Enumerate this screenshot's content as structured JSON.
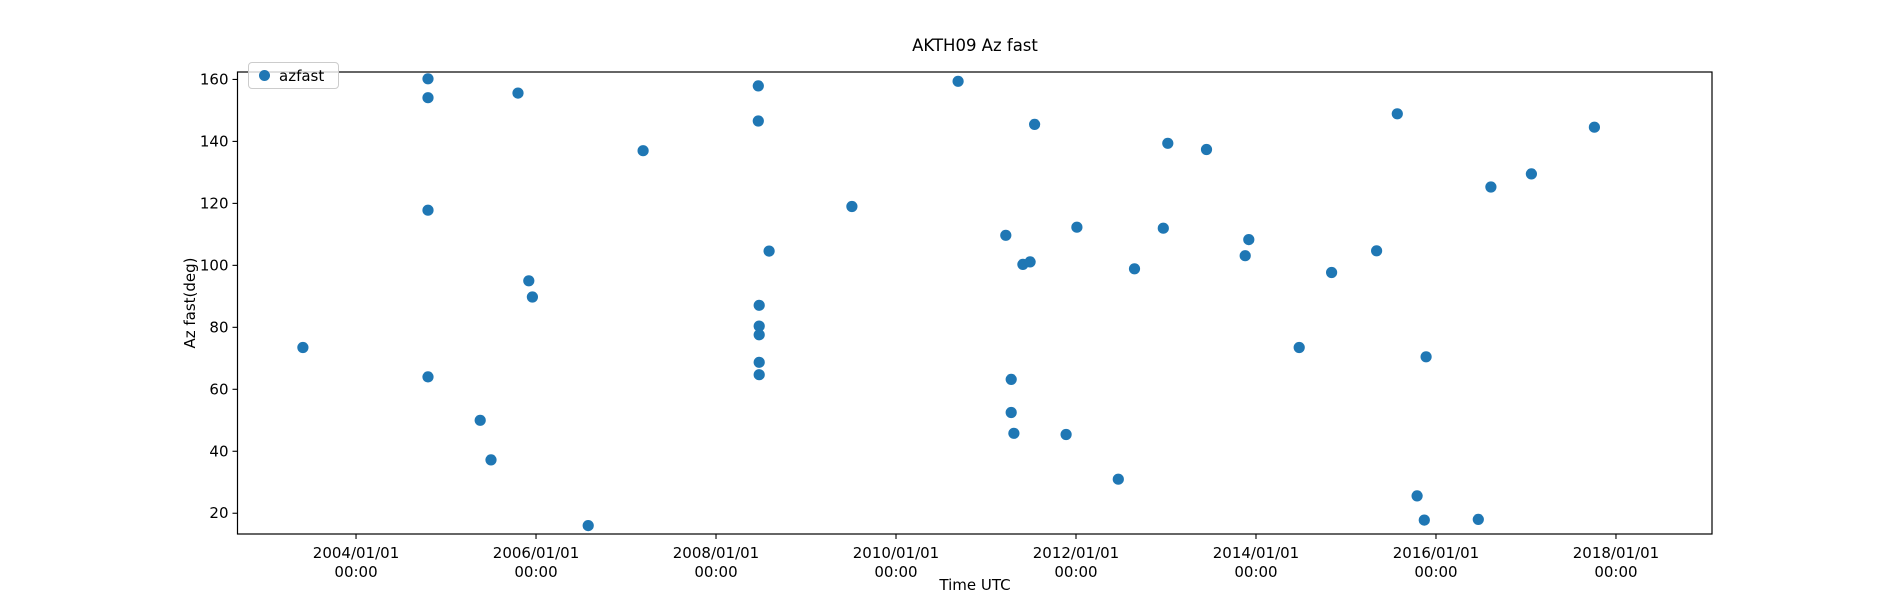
{
  "chart_data": {
    "type": "scatter",
    "title": "AKTH09 Az fast",
    "xlabel": "Time UTC",
    "ylabel": "Az fast(deg)",
    "marker_color": "#1f77b4",
    "axis_color": "#000000",
    "legend_position": "upper left",
    "grid": false,
    "series": [
      {
        "name": "azfast",
        "points": [
          [
            2003.41,
            73.5
          ],
          [
            2004.8,
            160.2
          ],
          [
            2004.8,
            154.1
          ],
          [
            2004.8,
            117.8
          ],
          [
            2004.8,
            64.0
          ],
          [
            2005.38,
            50.0
          ],
          [
            2005.5,
            37.2
          ],
          [
            2005.8,
            155.6
          ],
          [
            2005.92,
            95.0
          ],
          [
            2005.96,
            89.8
          ],
          [
            2006.58,
            16.0
          ],
          [
            2007.19,
            137.0
          ],
          [
            2008.47,
            157.9
          ],
          [
            2008.47,
            146.6
          ],
          [
            2008.48,
            87.1
          ],
          [
            2008.48,
            80.4
          ],
          [
            2008.48,
            77.6
          ],
          [
            2008.48,
            68.7
          ],
          [
            2008.48,
            64.7
          ],
          [
            2008.59,
            104.6
          ],
          [
            2009.51,
            119.0
          ],
          [
            2010.69,
            159.4
          ],
          [
            2011.22,
            109.7
          ],
          [
            2011.28,
            63.2
          ],
          [
            2011.28,
            52.5
          ],
          [
            2011.31,
            45.8
          ],
          [
            2011.41,
            100.3
          ],
          [
            2011.49,
            101.1
          ],
          [
            2011.54,
            145.5
          ],
          [
            2011.89,
            45.4
          ],
          [
            2012.01,
            112.3
          ],
          [
            2012.47,
            31.0
          ],
          [
            2012.65,
            98.9
          ],
          [
            2012.97,
            112.0
          ],
          [
            2013.02,
            139.4
          ],
          [
            2013.45,
            137.4
          ],
          [
            2013.88,
            103.1
          ],
          [
            2013.92,
            108.3
          ],
          [
            2014.48,
            73.5
          ],
          [
            2014.84,
            97.7
          ],
          [
            2015.34,
            104.7
          ],
          [
            2015.57,
            148.9
          ],
          [
            2015.79,
            25.6
          ],
          [
            2015.87,
            17.8
          ],
          [
            2015.89,
            70.5
          ],
          [
            2016.47,
            18.0
          ],
          [
            2016.61,
            125.3
          ],
          [
            2017.06,
            129.5
          ],
          [
            2017.76,
            144.6
          ]
        ]
      }
    ],
    "x_axis": {
      "range": [
        2002.683,
        2019.067
      ],
      "ticks": [
        {
          "year": 2004,
          "label": "2004/01/01",
          "sublabel": "00:00"
        },
        {
          "year": 2006,
          "label": "2006/01/01",
          "sublabel": "00:00"
        },
        {
          "year": 2008,
          "label": "2008/01/01",
          "sublabel": "00:00"
        },
        {
          "year": 2010,
          "label": "2010/01/01",
          "sublabel": "00:00"
        },
        {
          "year": 2012,
          "label": "2012/01/01",
          "sublabel": "00:00"
        },
        {
          "year": 2014,
          "label": "2014/01/01",
          "sublabel": "00:00"
        },
        {
          "year": 2016,
          "label": "2016/01/01",
          "sublabel": "00:00"
        },
        {
          "year": 2018,
          "label": "2018/01/01",
          "sublabel": "00:00"
        }
      ]
    },
    "y_axis": {
      "range": [
        13.3,
        162.4
      ],
      "ticks": [
        20,
        40,
        60,
        80,
        100,
        120,
        140,
        160
      ]
    }
  }
}
